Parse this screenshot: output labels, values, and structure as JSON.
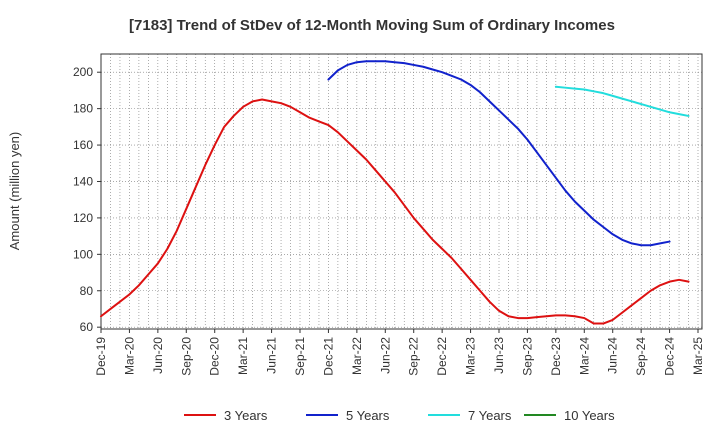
{
  "chart_data": {
    "type": "line",
    "title": "[7183]  Trend of StDev of 12-Month Moving Sum of Ordinary Incomes",
    "xlabel": "",
    "ylabel": "Amount (million yen)",
    "x_ticks": [
      "Dec-19",
      "Mar-20",
      "Jun-20",
      "Sep-20",
      "Dec-20",
      "Mar-21",
      "Jun-21",
      "Sep-21",
      "Dec-21",
      "Mar-22",
      "Jun-22",
      "Sep-22",
      "Dec-22",
      "Mar-23",
      "Jun-23",
      "Sep-23",
      "Dec-23",
      "Mar-24",
      "Jun-24",
      "Sep-24",
      "Dec-24",
      "Mar-25"
    ],
    "y_ticks": [
      60,
      80,
      100,
      120,
      140,
      160,
      180,
      200
    ],
    "ylim": [
      59,
      210
    ],
    "grid": true,
    "legend_position": "bottom",
    "series": [
      {
        "name": "3 Years",
        "color": "#dd1111",
        "start_index": 0,
        "values": [
          66,
          70,
          74,
          78,
          83,
          89,
          95,
          103,
          113,
          125,
          137,
          149,
          160,
          170,
          176,
          181,
          184,
          185,
          184,
          183,
          181,
          178,
          175,
          173,
          171,
          167,
          162,
          157,
          152,
          146,
          140,
          134,
          127,
          120,
          114,
          108,
          103,
          98,
          92,
          86,
          80,
          74,
          69,
          66,
          65,
          65,
          65.5,
          66,
          66.5,
          66.5,
          66,
          65,
          62,
          62,
          64,
          68,
          72,
          76,
          80,
          83,
          85,
          86,
          85
        ]
      },
      {
        "name": "5 Years",
        "color": "#1122cc",
        "start_index": 24,
        "values": [
          196,
          201,
          204,
          205.5,
          206,
          206,
          206,
          205.5,
          205,
          204,
          203,
          201.5,
          200,
          198,
          196,
          193,
          189,
          184,
          179,
          174,
          169,
          163,
          156,
          149,
          142,
          135,
          129,
          124,
          119,
          115,
          111,
          108,
          106,
          105,
          105,
          106,
          107
        ]
      },
      {
        "name": "7 Years",
        "color": "#22dddd",
        "start_index": 48,
        "values": [
          192,
          191.5,
          191,
          190.5,
          189.5,
          188.5,
          187,
          185.5,
          184,
          182.5,
          181,
          179.5,
          178,
          177,
          176
        ]
      },
      {
        "name": "10 Years",
        "color": "#228822",
        "start_index": 0,
        "values": []
      }
    ]
  }
}
